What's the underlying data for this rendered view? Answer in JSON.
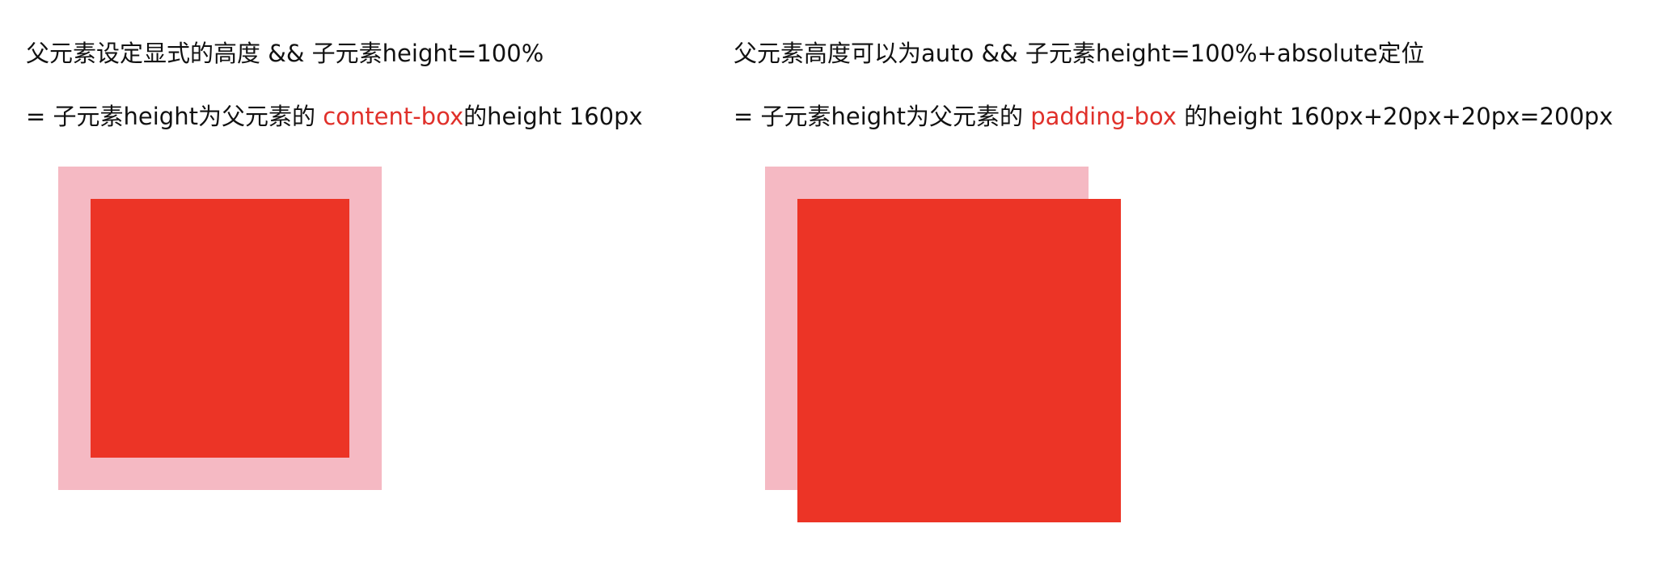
{
  "left": {
    "title": "父元素设定显式的高度 && 子元素height=100%",
    "formula_prefix": "= 子元素height为父元素的 ",
    "formula_highlight": "content-box",
    "formula_suffix": "的height 160px"
  },
  "right": {
    "title": "父元素高度可以为auto && 子元素height=100%+absolute定位",
    "formula_prefix": "= 子元素height为父元素的 ",
    "formula_highlight": "padding-box",
    "formula_suffix": " 的height 160px+20px+20px=200px"
  },
  "colors": {
    "parent_fill": "#f5b9c3",
    "child_fill": "#ec3426",
    "highlight_text": "#e0302a"
  }
}
